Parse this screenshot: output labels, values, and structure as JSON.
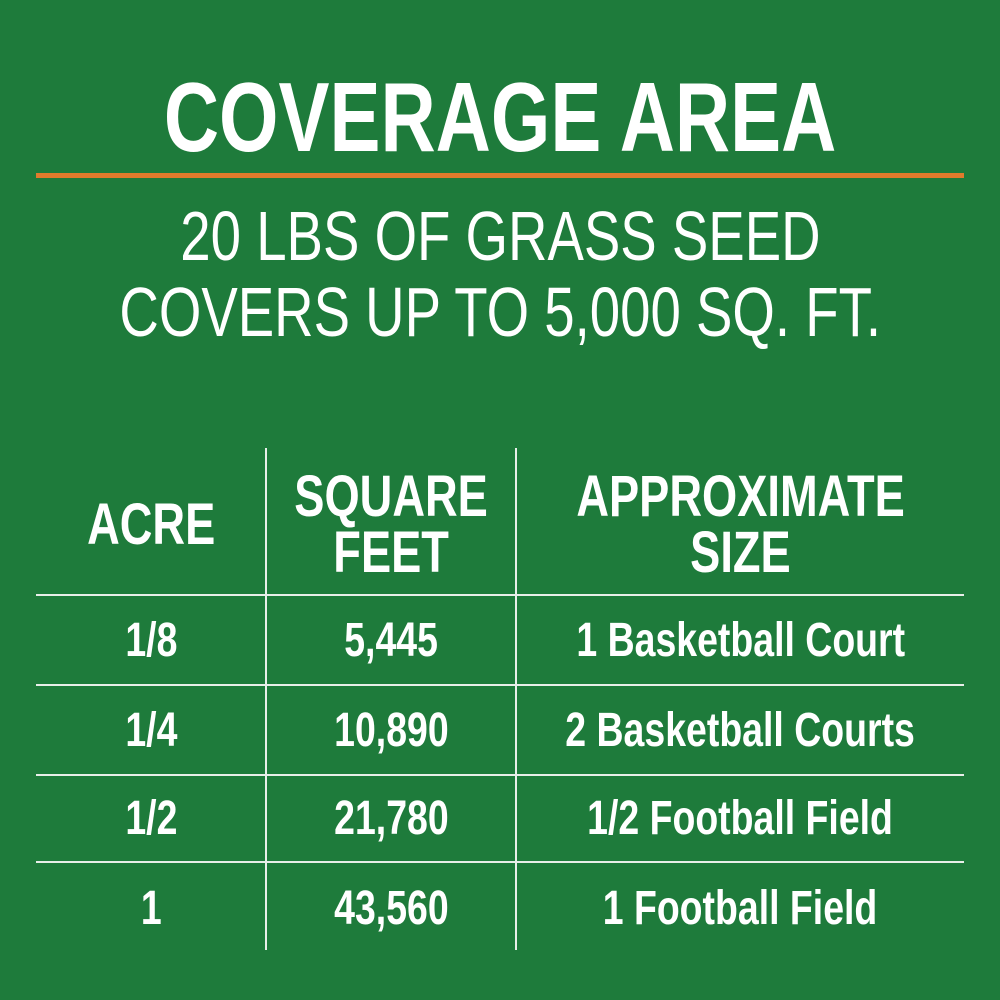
{
  "title": "COVERAGE AREA",
  "subtitle": [
    "20 LBS OF GRASS SEED",
    "COVERS UP TO 5,000 SQ. FT."
  ],
  "colors": {
    "background": "#1e7b3b",
    "accent_rule": "#e07b2c",
    "text": "#ffffff"
  },
  "table": {
    "headers": [
      [
        "ACRE"
      ],
      [
        "SQUARE",
        "FEET"
      ],
      [
        "APPROXIMATE",
        "SIZE"
      ]
    ],
    "rows": [
      [
        "1/8",
        "5,445",
        "1 Basketball Court"
      ],
      [
        "1/4",
        "10,890",
        "2 Basketball Courts"
      ],
      [
        "1/2",
        "21,780",
        "1/2 Football Field"
      ],
      [
        "1",
        "43,560",
        "1 Football Field"
      ]
    ]
  }
}
